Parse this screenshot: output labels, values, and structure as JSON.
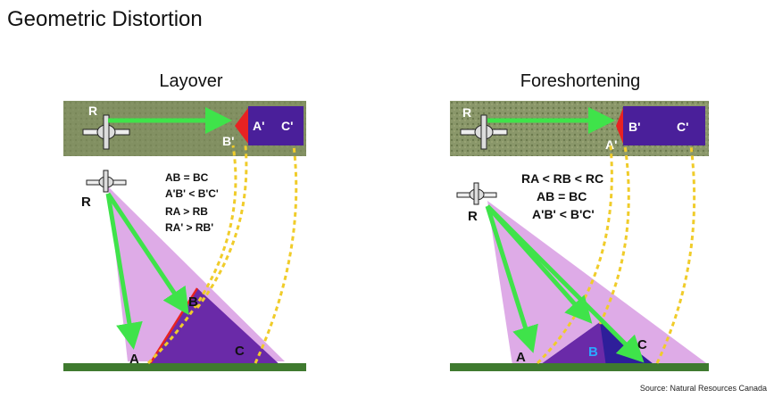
{
  "title": "Geometric Distortion",
  "left_panel": {
    "title": "Layover",
    "radar_label": "R",
    "strip_labels": [
      "R",
      "B'",
      "A'",
      "C'"
    ],
    "ground_labels": [
      "A",
      "B",
      "C"
    ],
    "relations": [
      "AB = BC",
      "A'B' < B'C'",
      "RA > RB",
      "RA' > RB'"
    ]
  },
  "right_panel": {
    "title": "Foreshortening",
    "radar_label": "R",
    "strip_labels": [
      "R",
      "A'",
      "B'",
      "C'"
    ],
    "ground_labels": [
      "A",
      "B",
      "C"
    ],
    "relations": [
      "RA < RB < RC",
      "AB = BC",
      "A'B' < B'C'"
    ]
  },
  "source": "Source: Natural Resources Canada",
  "colors": {
    "strip": "#7e8c5e",
    "ground": "#3f7a2f",
    "beam": "#d89ce3",
    "terrain": "#6a2aa8",
    "arrow": "#3fe34a",
    "dash": "#f0cc2a",
    "image_box": "#4a1f9a",
    "layover_red": "#e82222"
  }
}
